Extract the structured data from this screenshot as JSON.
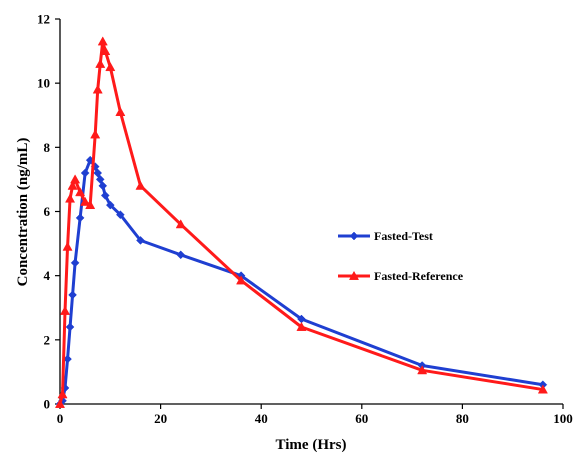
{
  "chart_data": {
    "type": "line",
    "title": "",
    "xlabel": "Time (Hrs)",
    "ylabel": "Concentration (ng/mL)",
    "xlim": [
      0,
      100
    ],
    "ylim": [
      0,
      12
    ],
    "xticks": [
      "0",
      "20",
      "40",
      "60",
      "80",
      "100"
    ],
    "yticks": [
      "0",
      "2",
      "4",
      "6",
      "8",
      "10",
      "12"
    ],
    "grid": false,
    "legend_position": "right",
    "series": [
      {
        "name": "Fasted-Test",
        "color": "#1f3fd1",
        "marker": "diamond",
        "x": [
          0,
          0.5,
          1,
          1.5,
          2,
          2.5,
          3,
          4,
          5,
          6,
          7,
          7.5,
          8,
          8.5,
          9,
          10,
          12,
          16,
          24,
          36,
          48,
          72,
          96
        ],
        "y": [
          0,
          0.1,
          0.5,
          1.4,
          2.4,
          3.4,
          4.4,
          5.8,
          7.2,
          7.6,
          7.4,
          7.2,
          7.0,
          6.8,
          6.5,
          6.2,
          5.9,
          5.1,
          4.65,
          4.0,
          2.65,
          1.2,
          0.6
        ]
      },
      {
        "name": "Fasted-Reference",
        "color": "#ff1a1a",
        "marker": "triangle",
        "x": [
          0,
          0.5,
          1,
          1.5,
          2,
          2.5,
          3,
          4,
          5,
          6,
          7,
          7.5,
          8,
          8.5,
          9,
          10,
          12,
          16,
          24,
          36,
          48,
          72,
          96
        ],
        "y": [
          0,
          0.3,
          2.9,
          4.9,
          6.4,
          6.8,
          7.0,
          6.6,
          6.3,
          6.2,
          8.4,
          9.8,
          10.6,
          11.3,
          11.0,
          10.5,
          9.1,
          6.8,
          5.6,
          3.85,
          2.4,
          1.05,
          0.45
        ]
      }
    ]
  }
}
